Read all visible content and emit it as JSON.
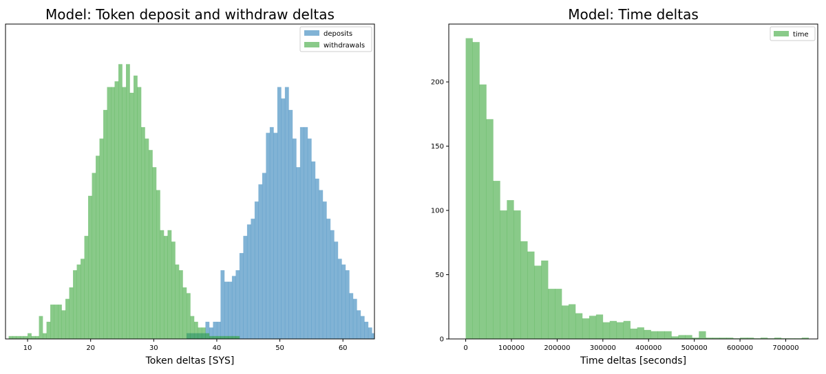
{
  "chart_data": [
    {
      "type": "histogram",
      "title": "Model: Token deposit and withdraw deltas",
      "xlabel": "Token deltas [SYS]",
      "ylabel": "",
      "xlim": [
        6.5,
        65
      ],
      "ylim": [
        0,
        55
      ],
      "xticks": [
        10,
        20,
        30,
        40,
        50,
        60
      ],
      "yticks": [],
      "legend_position": "top-right",
      "grid": false,
      "bin_width": 0.6,
      "series": [
        {
          "name": "deposits",
          "color": "#1f77b4",
          "opacity": 0.56,
          "bins": [
            [
              35.2,
              1
            ],
            [
              35.8,
              1
            ],
            [
              36.4,
              1
            ],
            [
              37.0,
              1
            ],
            [
              37.6,
              1
            ],
            [
              38.2,
              3
            ],
            [
              38.8,
              2
            ],
            [
              39.4,
              3
            ],
            [
              40.0,
              3
            ],
            [
              40.6,
              12
            ],
            [
              41.2,
              10
            ],
            [
              41.8,
              10
            ],
            [
              42.4,
              11
            ],
            [
              43.0,
              12
            ],
            [
              43.6,
              15
            ],
            [
              44.2,
              18
            ],
            [
              44.8,
              20
            ],
            [
              45.4,
              21
            ],
            [
              46.0,
              24
            ],
            [
              46.6,
              27
            ],
            [
              47.2,
              29
            ],
            [
              47.8,
              36
            ],
            [
              48.4,
              37
            ],
            [
              49.0,
              36
            ],
            [
              49.6,
              44
            ],
            [
              50.2,
              42
            ],
            [
              50.8,
              44
            ],
            [
              51.4,
              40
            ],
            [
              52.0,
              35
            ],
            [
              52.6,
              30
            ],
            [
              53.2,
              37
            ],
            [
              53.8,
              37
            ],
            [
              54.4,
              35
            ],
            [
              55.0,
              31
            ],
            [
              55.6,
              28
            ],
            [
              56.2,
              26
            ],
            [
              56.8,
              24
            ],
            [
              57.4,
              21
            ],
            [
              58.0,
              19
            ],
            [
              58.6,
              17
            ],
            [
              59.2,
              14
            ],
            [
              59.8,
              13
            ],
            [
              60.4,
              12
            ],
            [
              61.0,
              8
            ],
            [
              61.6,
              7
            ],
            [
              62.2,
              5
            ],
            [
              62.8,
              4
            ],
            [
              63.4,
              3
            ],
            [
              64.0,
              2
            ],
            [
              64.6,
              1
            ]
          ]
        },
        {
          "name": "withdrawals",
          "color": "#2ca02c",
          "opacity": 0.56,
          "bins": [
            [
              7.0,
              0.5
            ],
            [
              7.6,
              0.5
            ],
            [
              8.2,
              0.5
            ],
            [
              8.8,
              0.5
            ],
            [
              9.4,
              0.5
            ],
            [
              10.0,
              1
            ],
            [
              10.6,
              0.5
            ],
            [
              11.2,
              0.5
            ],
            [
              11.8,
              4
            ],
            [
              12.4,
              1
            ],
            [
              13.0,
              3
            ],
            [
              13.6,
              6
            ],
            [
              14.2,
              6
            ],
            [
              14.8,
              6
            ],
            [
              15.4,
              5
            ],
            [
              16.0,
              7
            ],
            [
              16.6,
              9
            ],
            [
              17.2,
              12
            ],
            [
              17.8,
              13
            ],
            [
              18.4,
              14
            ],
            [
              19.0,
              18
            ],
            [
              19.6,
              25
            ],
            [
              20.2,
              29
            ],
            [
              20.8,
              32
            ],
            [
              21.4,
              35
            ],
            [
              22.0,
              40
            ],
            [
              22.6,
              44
            ],
            [
              23.2,
              44
            ],
            [
              23.8,
              45
            ],
            [
              24.4,
              48
            ],
            [
              25.0,
              44
            ],
            [
              25.6,
              48
            ],
            [
              26.2,
              43
            ],
            [
              26.8,
              46
            ],
            [
              27.4,
              44
            ],
            [
              28.0,
              37
            ],
            [
              28.6,
              35
            ],
            [
              29.2,
              33
            ],
            [
              29.8,
              30
            ],
            [
              30.4,
              26
            ],
            [
              31.0,
              19
            ],
            [
              31.6,
              18
            ],
            [
              32.2,
              19
            ],
            [
              32.8,
              17
            ],
            [
              33.4,
              13
            ],
            [
              34.0,
              12
            ],
            [
              34.6,
              9
            ],
            [
              35.2,
              8
            ],
            [
              35.8,
              4
            ],
            [
              36.4,
              3
            ],
            [
              37.0,
              2
            ],
            [
              37.6,
              2
            ],
            [
              38.2,
              1
            ],
            [
              38.8,
              0.5
            ],
            [
              39.4,
              0.5
            ],
            [
              40.0,
              0.5
            ],
            [
              40.6,
              0.5
            ],
            [
              41.2,
              0.5
            ],
            [
              41.8,
              0.5
            ],
            [
              42.4,
              0.5
            ],
            [
              43.0,
              0.5
            ]
          ]
        }
      ]
    },
    {
      "type": "histogram",
      "title": "Model: Time deltas",
      "xlabel": "Time deltas [seconds]",
      "ylabel": "",
      "xlim": [
        -37000,
        770000
      ],
      "ylim": [
        0,
        245
      ],
      "xticks": [
        0,
        100000,
        200000,
        300000,
        400000,
        500000,
        600000,
        700000
      ],
      "yticks": [
        0,
        50,
        100,
        150,
        200
      ],
      "legend_position": "top-right",
      "grid": false,
      "bin_width": 15000,
      "series": [
        {
          "name": "time",
          "color": "#2ca02c",
          "opacity": 0.56,
          "bins": [
            [
              0,
              234
            ],
            [
              15000,
              231
            ],
            [
              30000,
              198
            ],
            [
              45000,
              171
            ],
            [
              60000,
              123
            ],
            [
              75000,
              100
            ],
            [
              90000,
              108
            ],
            [
              105000,
              100
            ],
            [
              120000,
              76
            ],
            [
              135000,
              68
            ],
            [
              150000,
              57
            ],
            [
              165000,
              61
            ],
            [
              180000,
              39
            ],
            [
              195000,
              39
            ],
            [
              210000,
              26
            ],
            [
              225000,
              27
            ],
            [
              240000,
              20
            ],
            [
              255000,
              16
            ],
            [
              270000,
              18
            ],
            [
              285000,
              19
            ],
            [
              300000,
              13
            ],
            [
              315000,
              14
            ],
            [
              330000,
              13
            ],
            [
              345000,
              14
            ],
            [
              360000,
              8
            ],
            [
              375000,
              9
            ],
            [
              390000,
              7
            ],
            [
              405000,
              6
            ],
            [
              420000,
              6
            ],
            [
              435000,
              6
            ],
            [
              450000,
              2
            ],
            [
              465000,
              3
            ],
            [
              480000,
              3
            ],
            [
              495000,
              1
            ],
            [
              510000,
              6
            ],
            [
              525000,
              1
            ],
            [
              540000,
              1
            ],
            [
              555000,
              1
            ],
            [
              570000,
              1
            ],
            [
              585000,
              0.5
            ],
            [
              600000,
              1
            ],
            [
              615000,
              1
            ],
            [
              630000,
              0.5
            ],
            [
              645000,
              1
            ],
            [
              660000,
              0.5
            ],
            [
              675000,
              1
            ],
            [
              690000,
              0.5
            ],
            [
              705000,
              0.5
            ],
            [
              720000,
              0.5
            ],
            [
              735000,
              1
            ]
          ]
        }
      ]
    }
  ]
}
